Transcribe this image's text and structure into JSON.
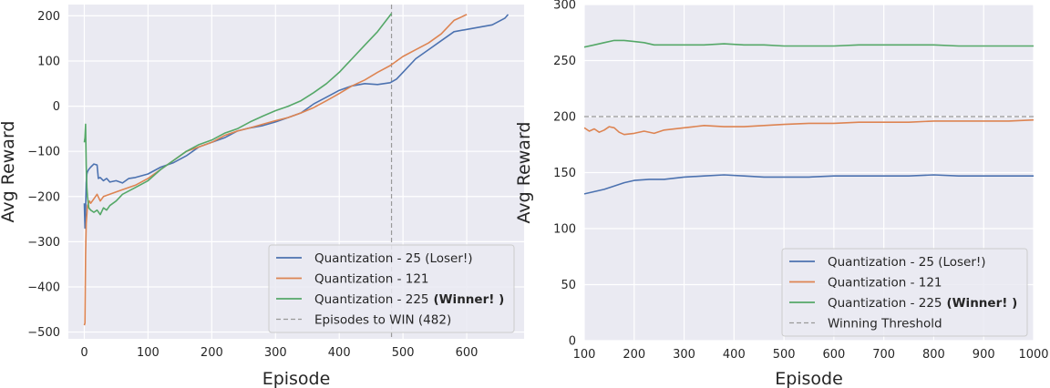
{
  "colors": {
    "blue": "#4c72b0",
    "orange": "#dd8452",
    "green": "#55a868",
    "threshold": "#999999",
    "panel_bg": "#eaeaf2",
    "grid": "#ffffff"
  },
  "chart_data": [
    {
      "type": "line",
      "xlabel": "Episode",
      "ylabel": "Avg Reward",
      "xlim": [
        -25,
        690
      ],
      "ylim": [
        -515,
        225
      ],
      "xticks": [
        0,
        100,
        200,
        300,
        400,
        500,
        600
      ],
      "yticks": [
        -500,
        -400,
        -300,
        -200,
        -100,
        0,
        100,
        200
      ],
      "xtick_labels": [
        "0",
        "100",
        "200",
        "300",
        "400",
        "500",
        "600"
      ],
      "ytick_labels": [
        "−500",
        "−400",
        "−300",
        "−200",
        "−100",
        "0",
        "100",
        "200"
      ],
      "grid": true,
      "legend_position": "lower-right",
      "series": [
        {
          "name": "Quantization - 25 (Loser!)",
          "name_bold": "",
          "color": "blue",
          "x": [
            0,
            1,
            2,
            3,
            4,
            5,
            7,
            10,
            15,
            20,
            22,
            25,
            30,
            35,
            40,
            50,
            60,
            70,
            80,
            100,
            120,
            140,
            160,
            180,
            200,
            220,
            240,
            260,
            280,
            300,
            320,
            340,
            360,
            380,
            400,
            420,
            440,
            460,
            480,
            490,
            500,
            520,
            540,
            560,
            580,
            600,
            620,
            640,
            660,
            665
          ],
          "y": [
            -215,
            -270,
            -230,
            -170,
            -150,
            -145,
            -140,
            -135,
            -128,
            -130,
            -160,
            -158,
            -165,
            -160,
            -168,
            -165,
            -170,
            -160,
            -158,
            -150,
            -135,
            -125,
            -110,
            -90,
            -80,
            -70,
            -55,
            -48,
            -43,
            -35,
            -25,
            -15,
            5,
            20,
            35,
            45,
            50,
            48,
            52,
            60,
            75,
            105,
            125,
            145,
            165,
            170,
            175,
            180,
            195,
            203
          ]
        },
        {
          "name": "Quantization - 121",
          "name_bold": "",
          "color": "orange",
          "x": [
            0,
            1,
            2,
            3,
            5,
            8,
            10,
            15,
            20,
            25,
            30,
            40,
            50,
            60,
            80,
            100,
            120,
            140,
            160,
            180,
            200,
            220,
            240,
            260,
            280,
            300,
            320,
            340,
            360,
            380,
            400,
            420,
            440,
            460,
            480,
            500,
            520,
            540,
            560,
            580,
            600
          ],
          "y": [
            -485,
            -480,
            -330,
            -260,
            -220,
            -210,
            -215,
            -205,
            -195,
            -210,
            -200,
            -195,
            -190,
            -185,
            -175,
            -160,
            -140,
            -120,
            -100,
            -90,
            -80,
            -65,
            -55,
            -48,
            -40,
            -32,
            -25,
            -15,
            -3,
            12,
            28,
            45,
            58,
            75,
            90,
            110,
            125,
            140,
            160,
            190,
            203
          ]
        },
        {
          "name": "Quantization - 225",
          "name_bold": "(Winner! )",
          "color": "green",
          "x": [
            0,
            1,
            2,
            3,
            4,
            5,
            7,
            10,
            15,
            20,
            25,
            30,
            35,
            40,
            50,
            60,
            80,
            100,
            120,
            140,
            160,
            180,
            200,
            220,
            240,
            260,
            280,
            300,
            320,
            340,
            360,
            380,
            400,
            420,
            440,
            460,
            482
          ],
          "y": [
            -80,
            -70,
            -40,
            -130,
            -180,
            -200,
            -225,
            -230,
            -235,
            -230,
            -240,
            -225,
            -230,
            -220,
            -210,
            -195,
            -180,
            -165,
            -140,
            -120,
            -100,
            -85,
            -75,
            -60,
            -50,
            -35,
            -22,
            -10,
            0,
            12,
            30,
            50,
            75,
            105,
            135,
            165,
            205
          ]
        }
      ],
      "reference_line": {
        "orientation": "vertical",
        "value": 482,
        "name": "Episodes to WIN (482)",
        "color": "threshold"
      }
    },
    {
      "type": "line",
      "xlabel": "Episode",
      "ylabel": "Avg Reward",
      "xlim": [
        100,
        1000
      ],
      "ylim": [
        0,
        300
      ],
      "xticks": [
        100,
        200,
        300,
        400,
        500,
        600,
        700,
        800,
        900,
        1000
      ],
      "yticks": [
        0,
        50,
        100,
        150,
        200,
        250,
        300
      ],
      "xtick_labels": [
        "100",
        "200",
        "300",
        "400",
        "500",
        "600",
        "700",
        "800",
        "900",
        "1000"
      ],
      "ytick_labels": [
        "0",
        "50",
        "100",
        "150",
        "200",
        "250",
        "300"
      ],
      "grid": true,
      "legend_position": "lower-right",
      "series": [
        {
          "name": "Quantization - 25 (Loser!)",
          "name_bold": "",
          "color": "blue",
          "x": [
            100,
            120,
            140,
            160,
            180,
            200,
            230,
            260,
            300,
            340,
            380,
            420,
            460,
            500,
            550,
            600,
            650,
            700,
            750,
            800,
            850,
            900,
            950,
            1000
          ],
          "y": [
            131,
            133,
            135,
            138,
            141,
            143,
            144,
            144,
            146,
            147,
            148,
            147,
            146,
            146,
            146,
            147,
            147,
            147,
            147,
            148,
            147,
            147,
            147,
            147
          ]
        },
        {
          "name": "Quantization - 121",
          "name_bold": "",
          "color": "orange",
          "x": [
            100,
            110,
            120,
            130,
            140,
            150,
            160,
            170,
            180,
            200,
            220,
            240,
            260,
            300,
            340,
            380,
            420,
            460,
            500,
            550,
            600,
            650,
            700,
            750,
            800,
            850,
            900,
            950,
            1000
          ],
          "y": [
            190,
            187,
            189,
            186,
            188,
            191,
            190,
            186,
            184,
            185,
            187,
            185,
            188,
            190,
            192,
            191,
            191,
            192,
            193,
            194,
            194,
            195,
            195,
            195,
            196,
            196,
            196,
            196,
            197
          ]
        },
        {
          "name": "Quantization - 225",
          "name_bold": "(Winner! )",
          "color": "green",
          "x": [
            100,
            120,
            140,
            160,
            180,
            200,
            220,
            240,
            260,
            300,
            340,
            380,
            420,
            460,
            500,
            550,
            600,
            650,
            700,
            750,
            800,
            850,
            900,
            950,
            1000
          ],
          "y": [
            262,
            264,
            266,
            268,
            268,
            267,
            266,
            264,
            264,
            264,
            264,
            265,
            264,
            264,
            263,
            263,
            263,
            264,
            264,
            264,
            264,
            263,
            263,
            263,
            263
          ]
        }
      ],
      "reference_line": {
        "orientation": "horizontal",
        "value": 200,
        "name": "Winning Threshold",
        "color": "threshold"
      }
    }
  ]
}
